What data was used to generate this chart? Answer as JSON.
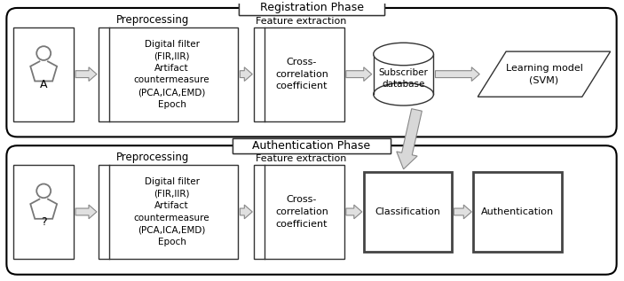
{
  "fig_width": 7.03,
  "fig_height": 3.17,
  "dpi": 100,
  "bg_color": "#ffffff",
  "phase_label_reg": "Registration Phase",
  "phase_label_auth": "Authentication Phase",
  "preprocessing_label": "Preprocessing",
  "feature_label": "Feature extraction",
  "reg_person_label": "A",
  "auth_person_label": "?",
  "preproc_text": "Digital filter\n(FIR,IIR)\nArtifact\ncountermeasure\n(PCA,ICA,EMD)\nEpoch",
  "cross_corr_text": "Cross-\ncorrelation\ncoefficient",
  "subscriber_db_text": "Subscriber\ndatabase",
  "learning_model_text": "Learning model\n(SVM)",
  "classification_text": "Classification",
  "authentication_text": "Authentication",
  "arrow_color": "#aaaaaa",
  "arrow_edge": "#888888",
  "person_color": "#888888",
  "box_edge": "#333333",
  "big_arrow_fill": "#d0d0d0",
  "big_arrow_edge": "#888888"
}
